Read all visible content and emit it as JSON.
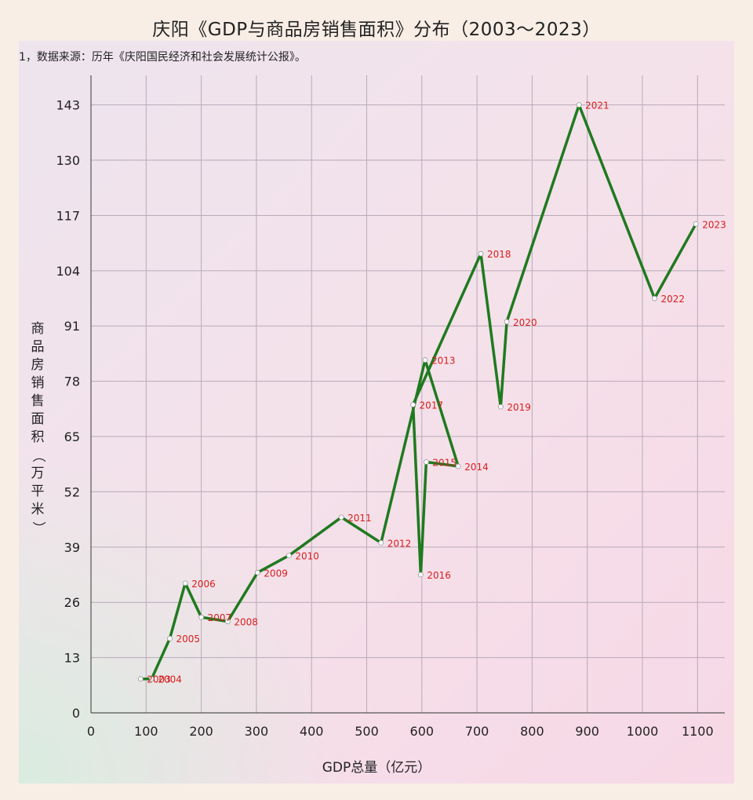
{
  "title": "庆阳《GDP与商品房销售面积》分布（2003～2023）",
  "source_note": "1，数据来源：历年《庆阳国民经济和社会发展统计公报》。",
  "colors": {
    "line": "#1f7a1f",
    "label": "#d81e1e",
    "grid": "#b8aab8",
    "point_fill": "#ffffff"
  },
  "chart_data": {
    "type": "line",
    "title": "庆阳《GDP与商品房销售面积》分布（2003～2023）",
    "xlabel": "GDP总量（亿元）",
    "ylabel": "商品房销售面积（万平米）",
    "xlim": [
      0,
      1150
    ],
    "ylim": [
      0,
      150
    ],
    "xticks": [
      0,
      100,
      200,
      300,
      400,
      500,
      600,
      700,
      800,
      900,
      1000,
      1100
    ],
    "yticks": [
      0,
      13,
      26,
      39,
      52,
      65,
      78,
      91,
      104,
      117,
      130,
      143
    ],
    "grid": true,
    "points": [
      {
        "year": "2003",
        "x": 90,
        "y": 8
      },
      {
        "year": "2004",
        "x": 110,
        "y": 8
      },
      {
        "year": "2005",
        "x": 143,
        "y": 17.5
      },
      {
        "year": "2006",
        "x": 171,
        "y": 30.5
      },
      {
        "year": "2007",
        "x": 200,
        "y": 22.5
      },
      {
        "year": "2008",
        "x": 248,
        "y": 21.5
      },
      {
        "year": "2009",
        "x": 302,
        "y": 33
      },
      {
        "year": "2010",
        "x": 359,
        "y": 37
      },
      {
        "year": "2011",
        "x": 454,
        "y": 46
      },
      {
        "year": "2012",
        "x": 526,
        "y": 40
      },
      {
        "year": "2013",
        "x": 606,
        "y": 83
      },
      {
        "year": "2014",
        "x": 666,
        "y": 58
      },
      {
        "year": "2015",
        "x": 608,
        "y": 59
      },
      {
        "year": "2016",
        "x": 598,
        "y": 32.5
      },
      {
        "year": "2017",
        "x": 584,
        "y": 72.5
      },
      {
        "year": "2018",
        "x": 707,
        "y": 108
      },
      {
        "year": "2019",
        "x": 743,
        "y": 72
      },
      {
        "year": "2020",
        "x": 754,
        "y": 92
      },
      {
        "year": "2021",
        "x": 885,
        "y": 143
      },
      {
        "year": "2022",
        "x": 1022,
        "y": 97.5
      },
      {
        "year": "2023",
        "x": 1097,
        "y": 115
      }
    ]
  }
}
